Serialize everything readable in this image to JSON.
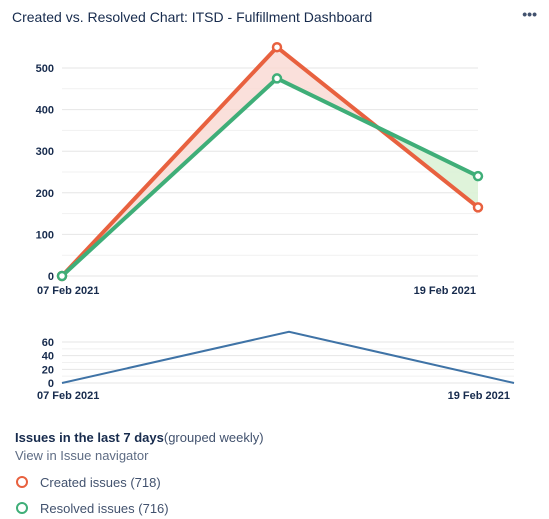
{
  "header": {
    "title": "Created vs. Resolved Chart: ITSD - Fulfillment Dashboard",
    "more_label": "•••"
  },
  "colors": {
    "created": "#e8613f",
    "resolved": "#3fae78",
    "created_area": "#f9d8d2",
    "resolved_area": "#dcf2d6",
    "trend": "#3f73a6",
    "grid": "#e6e6e6"
  },
  "chart_data": [
    {
      "type": "line",
      "title": "",
      "x": [
        "07 Feb 2021",
        "",
        "19 Feb 2021"
      ],
      "x_tick_labels": [
        "07 Feb 2021",
        "19 Feb 2021"
      ],
      "series": [
        {
          "name": "Created issues",
          "values": [
            0,
            550,
            165
          ]
        },
        {
          "name": "Resolved issues",
          "values": [
            0,
            475,
            240
          ]
        }
      ],
      "ylim": [
        0,
        500
      ],
      "yticks": [
        0,
        100,
        200,
        300,
        400,
        500
      ],
      "grid": true,
      "legend": "bottom"
    },
    {
      "type": "line",
      "title": "",
      "x": [
        "07 Feb 2021",
        "",
        "19 Feb 2021"
      ],
      "x_tick_labels": [
        "07 Feb 2021",
        "19 Feb 2021"
      ],
      "series": [
        {
          "values": [
            0,
            75,
            0
          ]
        }
      ],
      "ylim": [
        0,
        60
      ],
      "yticks": [
        0,
        20,
        40,
        60
      ],
      "grid": true
    }
  ],
  "footer": {
    "title_bold": "Issues in the last 7 days",
    "title_grouping": "(grouped weekly)",
    "navigator_link": "View in Issue navigator",
    "legend": [
      {
        "key": "created",
        "label": "Created issues (718)"
      },
      {
        "key": "resolved",
        "label": "Resolved issues (716)"
      }
    ]
  }
}
